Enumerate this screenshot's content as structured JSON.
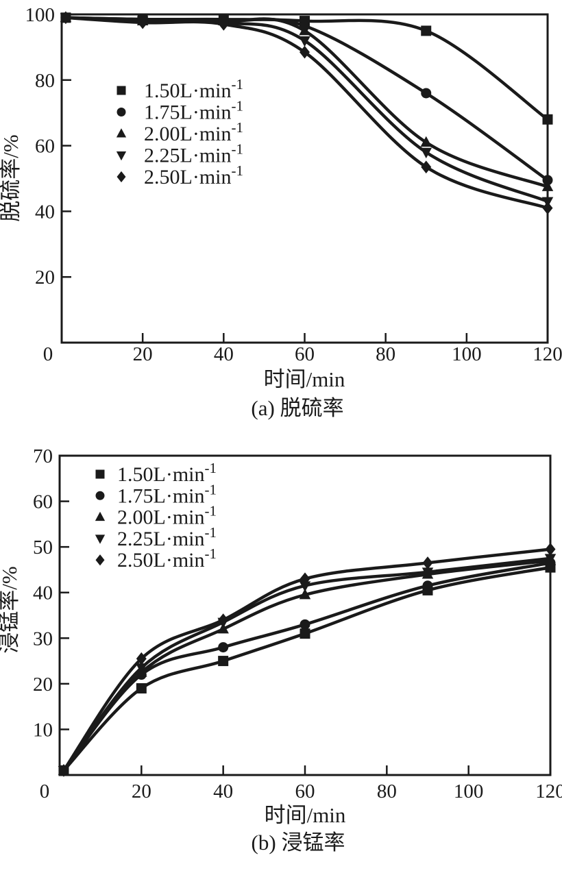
{
  "figure": {
    "background": "#ffffff",
    "ink_color": "#1a1a1a"
  },
  "chart_data": [
    {
      "id": "a",
      "type": "line",
      "caption": "(a) 脱硫率",
      "xlabel": "时间/min",
      "ylabel": "脱硫率/%",
      "xlim": [
        0,
        120
      ],
      "ylim": [
        0,
        100
      ],
      "xticks": [
        20,
        40,
        60,
        80,
        100,
        120
      ],
      "yticks": [
        0,
        20,
        40,
        60,
        80,
        100
      ],
      "origin_tick_label": "0",
      "grid": false,
      "legend_position": "upper-left-inside",
      "x": [
        1,
        20,
        40,
        60,
        90,
        120
      ],
      "series": [
        {
          "name": "1.50L·min⁻¹",
          "marker": "square",
          "values": [
            99,
            98.5,
            98.5,
            98,
            95,
            68
          ]
        },
        {
          "name": "1.75L·min⁻¹",
          "marker": "circle",
          "values": [
            99,
            98.5,
            98,
            96.5,
            76,
            49.5
          ]
        },
        {
          "name": "2.00L·min⁻¹",
          "marker": "triangle-up",
          "values": [
            99,
            98,
            98,
            95,
            61,
            47.5
          ]
        },
        {
          "name": "2.25L·min⁻¹",
          "marker": "triangle-down",
          "values": [
            99,
            98,
            97.5,
            92,
            58,
            43
          ]
        },
        {
          "name": "2.50L·min⁻¹",
          "marker": "diamond",
          "values": [
            99,
            97.5,
            97,
            88.5,
            53.5,
            41
          ]
        }
      ]
    },
    {
      "id": "b",
      "type": "line",
      "caption": "(b) 浸锰率",
      "xlabel": "时间/min",
      "ylabel": "浸锰率/%",
      "xlim": [
        0,
        120
      ],
      "ylim": [
        0,
        70
      ],
      "xticks": [
        20,
        40,
        60,
        80,
        100,
        120
      ],
      "yticks": [
        0,
        10,
        20,
        30,
        40,
        50,
        60,
        70
      ],
      "origin_tick_label": "0",
      "grid": false,
      "legend_position": "upper-left-inside",
      "x": [
        1,
        20,
        40,
        60,
        90,
        120
      ],
      "series": [
        {
          "name": "1.50L·min⁻¹",
          "marker": "square",
          "values": [
            1,
            19,
            25,
            31,
            40.5,
            45.5
          ]
        },
        {
          "name": "1.75L·min⁻¹",
          "marker": "circle",
          "values": [
            1,
            22,
            28,
            33,
            41.5,
            46.5
          ]
        },
        {
          "name": "2.00L·min⁻¹",
          "marker": "triangle-up",
          "values": [
            1,
            22.5,
            32,
            39.5,
            44,
            47
          ]
        },
        {
          "name": "2.25L·min⁻¹",
          "marker": "triangle-down",
          "values": [
            1,
            23.5,
            33.5,
            41.5,
            44.5,
            47.5
          ]
        },
        {
          "name": "2.50L·min⁻¹",
          "marker": "diamond",
          "values": [
            1,
            25.5,
            34,
            43,
            46.5,
            49.5
          ]
        }
      ]
    }
  ]
}
